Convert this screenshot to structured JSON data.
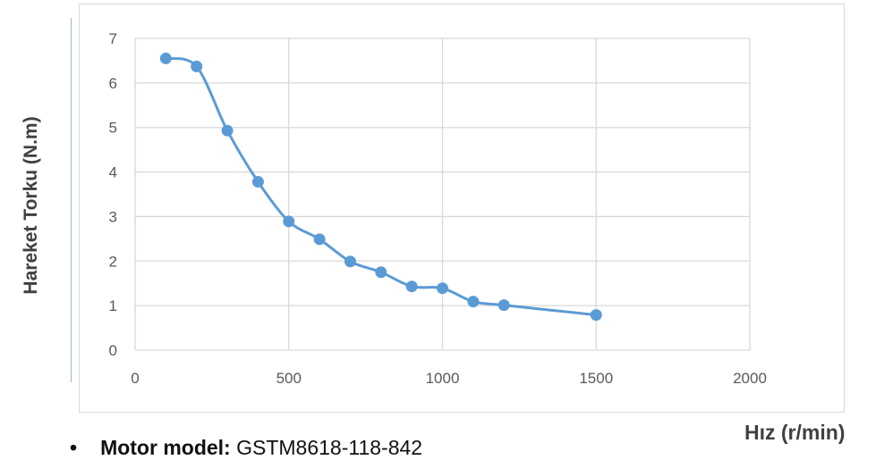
{
  "chart_data": {
    "type": "line",
    "title": "",
    "xlabel": "Hız (r/min)",
    "ylabel": "Hareket Torku (N.m)",
    "xlim": [
      0,
      2000
    ],
    "ylim": [
      0,
      7
    ],
    "x_ticks": [
      "0",
      "500",
      "1000",
      "1500",
      "2000"
    ],
    "y_ticks": [
      "0",
      "1",
      "2",
      "3",
      "4",
      "5",
      "6",
      "7"
    ],
    "grid": true,
    "smooth": true,
    "color": "#5b9bd5",
    "series": [
      {
        "x": [
          100,
          200,
          300,
          400,
          500,
          600,
          700,
          800,
          900,
          1000,
          1100,
          1200,
          1500
        ],
        "values": [
          6.55,
          6.37,
          4.93,
          3.78,
          2.89,
          2.49,
          1.99,
          1.75,
          1.43,
          1.39,
          1.09,
          1.01,
          0.79
        ]
      }
    ]
  },
  "footer": {
    "bullet": "•",
    "label": "Motor model:",
    "value": "GSTM8618-118-842"
  }
}
